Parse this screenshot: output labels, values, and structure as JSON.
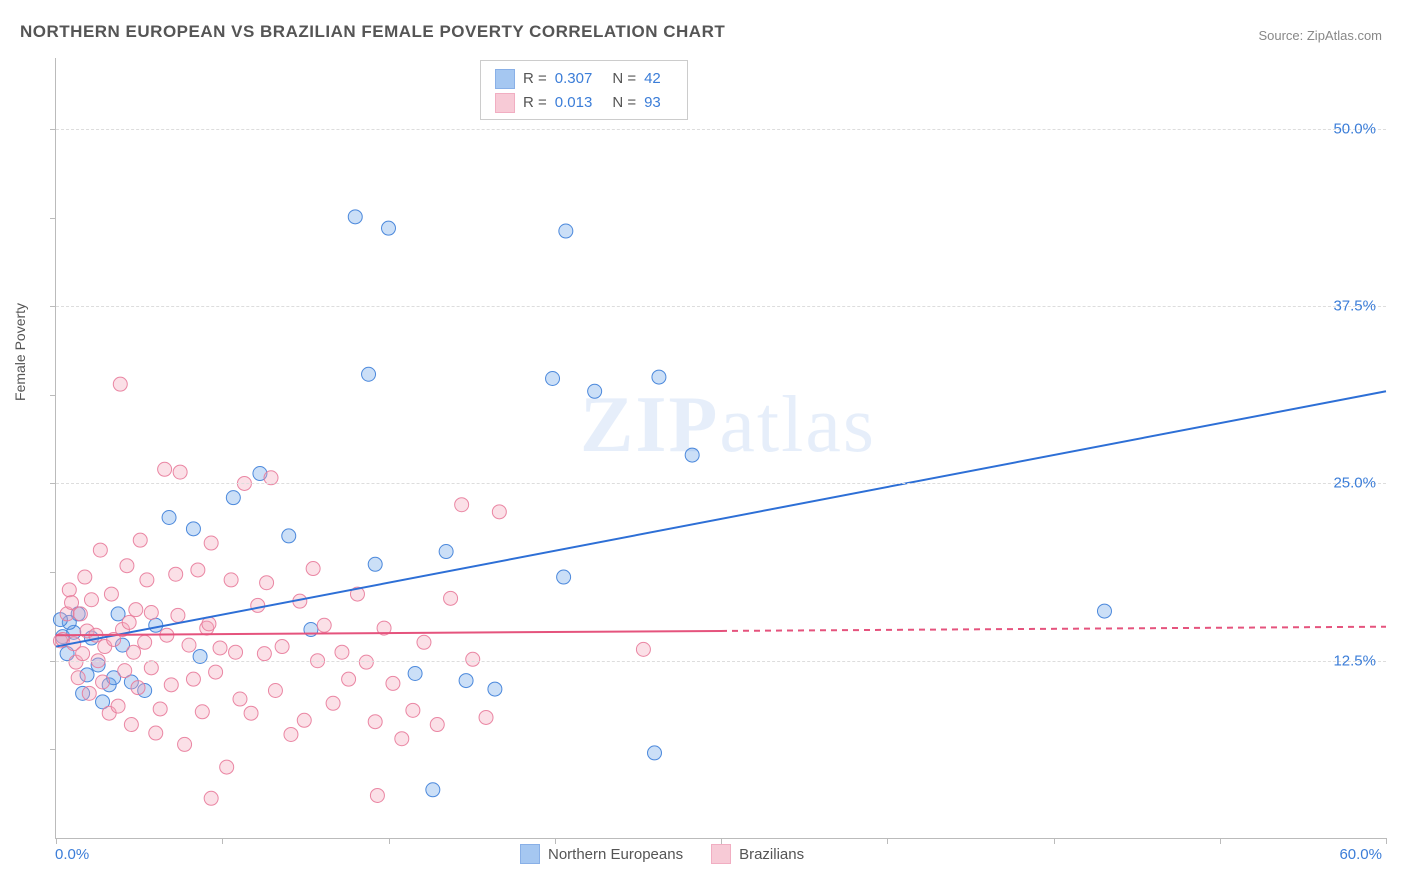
{
  "title": "NORTHERN EUROPEAN VS BRAZILIAN FEMALE POVERTY CORRELATION CHART",
  "source": "Source: ZipAtlas.com",
  "y_axis_title": "Female Poverty",
  "watermark_bold": "ZIP",
  "watermark_light": "atlas",
  "chart": {
    "type": "scatter",
    "xlim": [
      0,
      60
    ],
    "ylim": [
      0,
      55
    ],
    "background_color": "#ffffff",
    "grid_color": "#dddddd",
    "axis_color": "#bbbbbb",
    "x_axis_labels": {
      "left": "0.0%",
      "right": "60.0%"
    },
    "y_ticks": [
      {
        "value": 12.5,
        "label": "12.5%"
      },
      {
        "value": 25.0,
        "label": "25.0%"
      },
      {
        "value": 37.5,
        "label": "37.5%"
      },
      {
        "value": 50.0,
        "label": "50.0%"
      }
    ],
    "x_tick_positions": [
      0,
      7.5,
      15,
      22.5,
      30,
      37.5,
      45,
      52.5,
      60
    ],
    "y_minor_tick_positions": [
      6.25,
      18.75,
      31.25,
      43.75
    ],
    "marker_radius": 7,
    "marker_fill_opacity": 0.35,
    "marker_stroke_opacity": 0.9,
    "marker_stroke_width": 1,
    "line_width": 2,
    "series": [
      {
        "id": "northern_europeans",
        "label": "Northern Europeans",
        "color": "#6aa2e8",
        "stroke": "#3b7dd8",
        "line_color": "#2d6fd6",
        "R": "0.307",
        "N": "42",
        "trend": {
          "x1": 0,
          "y1": 13.5,
          "x2": 60,
          "y2": 31.5,
          "solid_until": 60
        },
        "points": [
          [
            0.3,
            14.2
          ],
          [
            0.5,
            13.0
          ],
          [
            0.8,
            14.5
          ],
          [
            1.0,
            15.8
          ],
          [
            1.2,
            10.2
          ],
          [
            1.4,
            11.5
          ],
          [
            1.6,
            14.1
          ],
          [
            1.9,
            12.2
          ],
          [
            2.4,
            10.8
          ],
          [
            2.6,
            11.3
          ],
          [
            3.0,
            13.6
          ],
          [
            3.4,
            11.0
          ],
          [
            2.1,
            9.6
          ],
          [
            4.0,
            10.4
          ],
          [
            5.1,
            22.6
          ],
          [
            6.2,
            21.8
          ],
          [
            6.5,
            12.8
          ],
          [
            8.0,
            24.0
          ],
          [
            9.2,
            25.7
          ],
          [
            10.5,
            21.3
          ],
          [
            11.5,
            14.7
          ],
          [
            13.5,
            43.8
          ],
          [
            15.0,
            43.0
          ],
          [
            14.1,
            32.7
          ],
          [
            14.4,
            19.3
          ],
          [
            16.2,
            11.6
          ],
          [
            17.6,
            20.2
          ],
          [
            18.5,
            11.1
          ],
          [
            17.0,
            3.4
          ],
          [
            19.8,
            10.5
          ],
          [
            22.4,
            32.4
          ],
          [
            22.9,
            18.4
          ],
          [
            23.0,
            42.8
          ],
          [
            24.3,
            31.5
          ],
          [
            27.2,
            32.5
          ],
          [
            27.0,
            6.0
          ],
          [
            28.7,
            27.0
          ],
          [
            47.3,
            16.0
          ],
          [
            0.6,
            15.2
          ],
          [
            0.2,
            15.4
          ],
          [
            4.5,
            15.0
          ],
          [
            2.8,
            15.8
          ]
        ]
      },
      {
        "id": "brazilians",
        "label": "Brazilians",
        "color": "#f3a7bb",
        "stroke": "#e87a9a",
        "line_color": "#e5537d",
        "R": "0.013",
        "N": "93",
        "trend": {
          "x1": 0,
          "y1": 14.3,
          "x2": 60,
          "y2": 14.9,
          "solid_until": 30
        },
        "points": [
          [
            0.2,
            13.9
          ],
          [
            0.3,
            14.0
          ],
          [
            0.5,
            15.8
          ],
          [
            0.6,
            17.5
          ],
          [
            0.7,
            16.6
          ],
          [
            0.8,
            13.7
          ],
          [
            0.9,
            12.4
          ],
          [
            1.0,
            11.3
          ],
          [
            1.1,
            15.8
          ],
          [
            1.2,
            13.0
          ],
          [
            1.3,
            18.4
          ],
          [
            1.4,
            14.6
          ],
          [
            1.5,
            10.2
          ],
          [
            1.6,
            16.8
          ],
          [
            1.8,
            14.3
          ],
          [
            1.9,
            12.5
          ],
          [
            2.0,
            20.3
          ],
          [
            2.1,
            11.0
          ],
          [
            2.2,
            13.5
          ],
          [
            2.4,
            8.8
          ],
          [
            2.5,
            17.2
          ],
          [
            2.6,
            14.0
          ],
          [
            2.8,
            9.3
          ],
          [
            2.9,
            32.0
          ],
          [
            3.0,
            14.7
          ],
          [
            3.1,
            11.8
          ],
          [
            3.2,
            19.2
          ],
          [
            3.4,
            8.0
          ],
          [
            3.5,
            13.1
          ],
          [
            3.6,
            16.1
          ],
          [
            3.7,
            10.6
          ],
          [
            3.8,
            21.0
          ],
          [
            4.0,
            13.8
          ],
          [
            4.1,
            18.2
          ],
          [
            4.3,
            12.0
          ],
          [
            4.5,
            7.4
          ],
          [
            4.7,
            9.1
          ],
          [
            4.9,
            26.0
          ],
          [
            5.0,
            14.3
          ],
          [
            5.2,
            10.8
          ],
          [
            5.4,
            18.6
          ],
          [
            5.6,
            25.8
          ],
          [
            5.8,
            6.6
          ],
          [
            6.0,
            13.6
          ],
          [
            6.2,
            11.2
          ],
          [
            6.4,
            18.9
          ],
          [
            6.6,
            8.9
          ],
          [
            6.8,
            14.8
          ],
          [
            7.0,
            20.8
          ],
          [
            7.2,
            11.7
          ],
          [
            7.4,
            13.4
          ],
          [
            7.7,
            5.0
          ],
          [
            7.9,
            18.2
          ],
          [
            8.1,
            13.1
          ],
          [
            8.3,
            9.8
          ],
          [
            8.5,
            25.0
          ],
          [
            8.8,
            8.8
          ],
          [
            9.1,
            16.4
          ],
          [
            9.4,
            13.0
          ],
          [
            9.5,
            18.0
          ],
          [
            9.7,
            25.4
          ],
          [
            9.9,
            10.4
          ],
          [
            10.2,
            13.5
          ],
          [
            10.6,
            7.3
          ],
          [
            11.0,
            16.7
          ],
          [
            11.2,
            8.3
          ],
          [
            11.6,
            19.0
          ],
          [
            11.8,
            12.5
          ],
          [
            12.1,
            15.0
          ],
          [
            12.5,
            9.5
          ],
          [
            12.9,
            13.1
          ],
          [
            13.2,
            11.2
          ],
          [
            13.6,
            17.2
          ],
          [
            14.0,
            12.4
          ],
          [
            14.4,
            8.2
          ],
          [
            14.8,
            14.8
          ],
          [
            15.2,
            10.9
          ],
          [
            15.6,
            7.0
          ],
          [
            16.1,
            9.0
          ],
          [
            16.6,
            13.8
          ],
          [
            17.2,
            8.0
          ],
          [
            17.8,
            16.9
          ],
          [
            18.3,
            23.5
          ],
          [
            18.8,
            12.6
          ],
          [
            19.4,
            8.5
          ],
          [
            20.0,
            23.0
          ],
          [
            7.0,
            2.8
          ],
          [
            14.5,
            3.0
          ],
          [
            26.5,
            13.3
          ],
          [
            4.3,
            15.9
          ],
          [
            5.5,
            15.7
          ],
          [
            6.9,
            15.1
          ],
          [
            3.3,
            15.2
          ]
        ]
      }
    ]
  },
  "legend_top": {
    "label_R": "R =",
    "label_N": "N ="
  },
  "colors": {
    "title": "#555555",
    "source": "#888888",
    "tick_label": "#3b7dd8"
  }
}
